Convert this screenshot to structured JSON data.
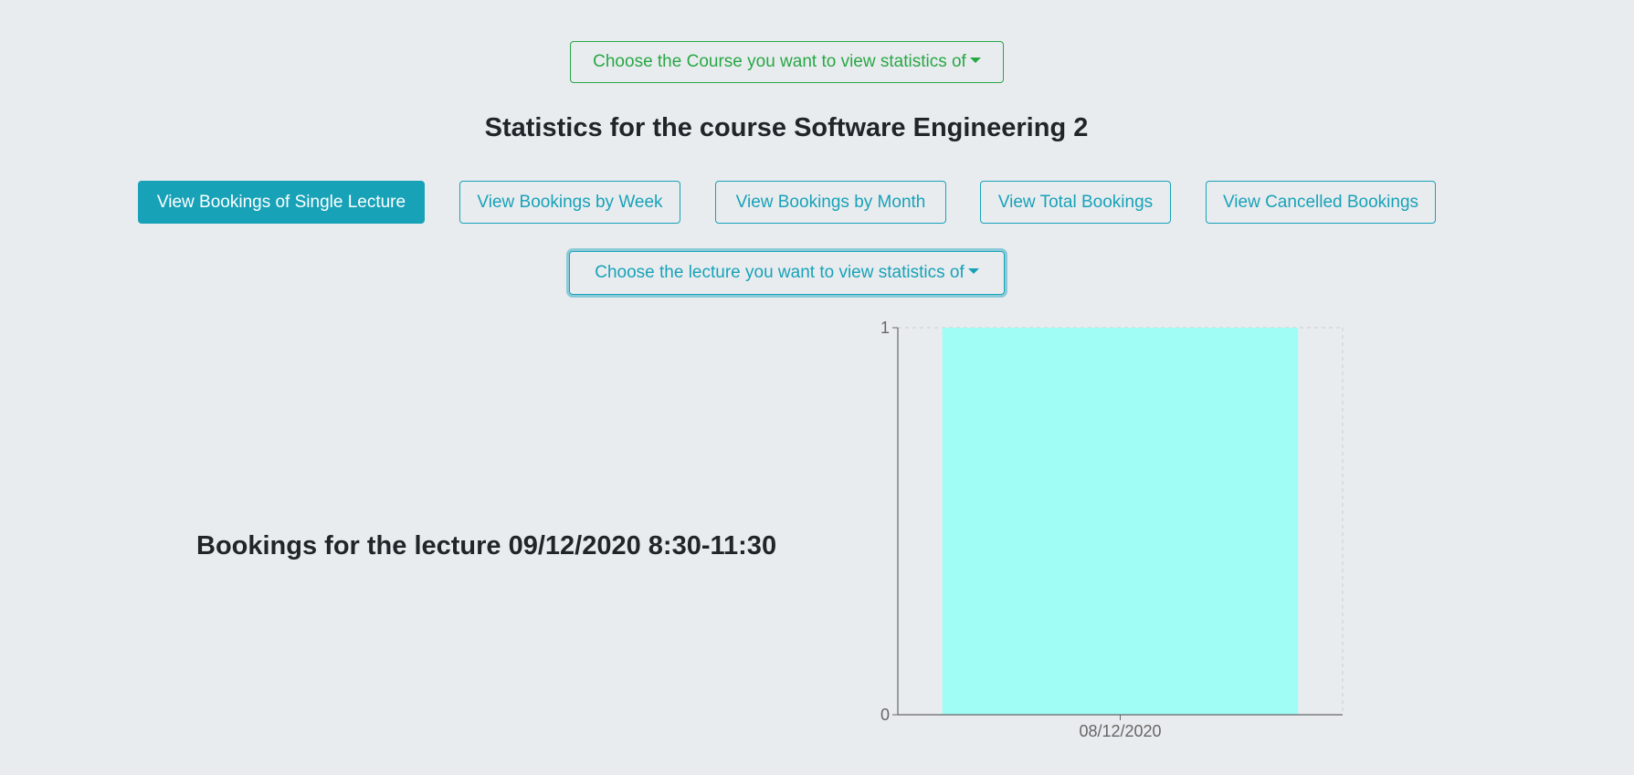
{
  "course_dropdown": {
    "label": "Choose the Course you want to view statistics of"
  },
  "page_title": "Statistics for the course Software Engineering 2",
  "tabs": [
    {
      "label": "View Bookings of Single Lecture",
      "active": true
    },
    {
      "label": "View Bookings by Week",
      "active": false
    },
    {
      "label": "View Bookings by Month",
      "active": false
    },
    {
      "label": "View Total Bookings",
      "active": false
    },
    {
      "label": "View Cancelled Bookings",
      "active": false
    }
  ],
  "lecture_dropdown": {
    "label": "Choose the lecture you want to view statistics of"
  },
  "lecture_heading": "Bookings for the lecture 09/12/2020 8:30-11:30",
  "colors": {
    "course_dropdown": "#28a745",
    "tabs": "#17a2b8",
    "bar": "#a0fdf6",
    "background": "#e9ecef"
  },
  "chart_data": {
    "type": "bar",
    "categories": [
      "08/12/2020"
    ],
    "values": [
      1
    ],
    "ylim": [
      0,
      1
    ],
    "yticks": [
      0,
      1
    ],
    "grid": "dashed-border",
    "bar_color": "#a0fdf6"
  }
}
